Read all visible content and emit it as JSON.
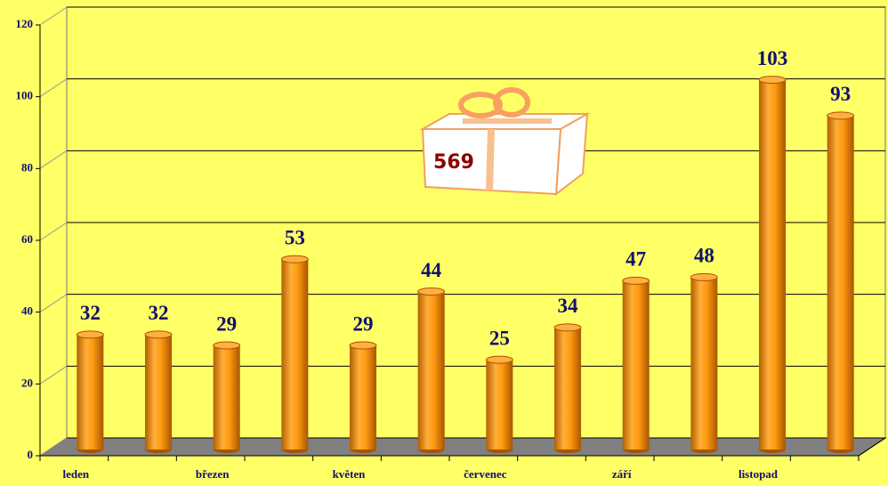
{
  "chart_data": {
    "type": "bar",
    "categories": [
      "leden",
      null,
      "březen",
      null,
      "květen",
      null,
      "červenec",
      null,
      "září",
      null,
      "listopad",
      null
    ],
    "values": [
      32,
      32,
      29,
      53,
      29,
      44,
      25,
      34,
      47,
      48,
      103,
      93
    ],
    "color": "#ff9a10",
    "ylim": [
      0,
      120
    ],
    "yticks": [
      0,
      20,
      40,
      60,
      80,
      100,
      120
    ],
    "grid": true,
    "annotation": "569"
  }
}
